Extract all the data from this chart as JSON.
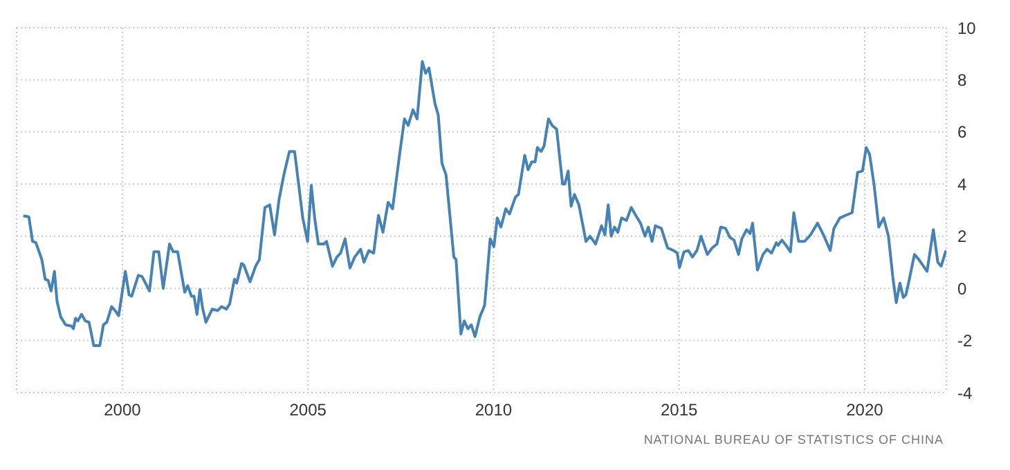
{
  "chart_data": {
    "type": "line",
    "x": [
      1997.33,
      1997.48,
      1997.58,
      1997.67,
      1997.83,
      1997.92,
      1998.0,
      1998.08,
      1998.17,
      1998.24,
      1998.34,
      1998.47,
      1998.63,
      1998.68,
      1998.74,
      1998.8,
      1998.9,
      1999.0,
      1999.1,
      1999.23,
      1999.39,
      1999.49,
      1999.58,
      1999.71,
      1999.8,
      1999.9,
      2000.08,
      2000.18,
      2000.25,
      2000.43,
      2000.53,
      2000.73,
      2000.85,
      2000.98,
      2001.1,
      2001.27,
      2001.37,
      2001.49,
      2001.68,
      2001.76,
      2001.86,
      2001.93,
      2002.01,
      2002.09,
      2002.16,
      2002.25,
      2002.42,
      2002.57,
      2002.67,
      2002.8,
      2002.89,
      2003.02,
      2003.08,
      2003.21,
      2003.27,
      2003.44,
      2003.59,
      2003.69,
      2003.84,
      2003.97,
      2004.1,
      2004.22,
      2004.35,
      2004.5,
      2004.64,
      2004.86,
      2004.99,
      2005.09,
      2005.18,
      2005.28,
      2005.43,
      2005.5,
      2005.66,
      2005.78,
      2005.88,
      2006.0,
      2006.13,
      2006.26,
      2006.42,
      2006.51,
      2006.64,
      2006.77,
      2006.9,
      2007.02,
      2007.16,
      2007.28,
      2007.47,
      2007.6,
      2007.7,
      2007.83,
      2007.94,
      2008.08,
      2008.17,
      2008.26,
      2008.42,
      2008.51,
      2008.61,
      2008.72,
      2008.93,
      2008.99,
      2009.12,
      2009.21,
      2009.31,
      2009.4,
      2009.5,
      2009.63,
      2009.76,
      2009.91,
      2010.01,
      2010.1,
      2010.2,
      2010.33,
      2010.43,
      2010.59,
      2010.67,
      2010.84,
      2010.93,
      2011.03,
      2011.12,
      2011.18,
      2011.28,
      2011.36,
      2011.48,
      2011.58,
      2011.7,
      2011.86,
      2011.92,
      2012.01,
      2012.09,
      2012.18,
      2012.3,
      2012.49,
      2012.6,
      2012.75,
      2012.91,
      2013.0,
      2013.09,
      2013.17,
      2013.26,
      2013.35,
      2013.45,
      2013.58,
      2013.71,
      2013.83,
      2013.96,
      2014.08,
      2014.17,
      2014.27,
      2014.36,
      2014.52,
      2014.69,
      2014.85,
      2014.95,
      2015.01,
      2015.13,
      2015.25,
      2015.36,
      2015.48,
      2015.59,
      2015.76,
      2015.89,
      2016.02,
      2016.12,
      2016.25,
      2016.37,
      2016.48,
      2016.6,
      2016.69,
      2016.82,
      2016.91,
      2016.98,
      2017.11,
      2017.26,
      2017.37,
      2017.49,
      2017.62,
      2017.67,
      2017.77,
      2017.88,
      2018.0,
      2018.09,
      2018.22,
      2018.38,
      2018.54,
      2018.73,
      2018.89,
      2019.07,
      2019.17,
      2019.33,
      2019.49,
      2019.66,
      2019.81,
      2019.94,
      2020.04,
      2020.13,
      2020.25,
      2020.38,
      2020.51,
      2020.64,
      2020.76,
      2020.85,
      2020.95,
      2021.04,
      2021.11,
      2021.21,
      2021.34,
      2021.46,
      2021.68,
      2021.85,
      2021.97,
      2022.06,
      2022.19
    ],
    "series": [
      {
        "color": "#4682b4",
        "values": [
          2.78,
          2.74,
          1.8,
          1.75,
          1.1,
          0.35,
          0.3,
          -0.1,
          0.65,
          -0.5,
          -1.1,
          -1.4,
          -1.45,
          -1.55,
          -1.15,
          -1.25,
          -1.0,
          -1.25,
          -1.3,
          -2.2,
          -2.2,
          -1.4,
          -1.3,
          -0.7,
          -0.85,
          -1.05,
          0.65,
          -0.25,
          -0.3,
          0.5,
          0.45,
          -0.1,
          1.4,
          1.4,
          0.0,
          1.7,
          1.4,
          1.4,
          -0.15,
          0.1,
          -0.3,
          -0.3,
          -1.0,
          -0.05,
          -0.75,
          -1.3,
          -0.8,
          -0.85,
          -0.7,
          -0.8,
          -0.6,
          0.35,
          0.2,
          0.95,
          0.9,
          0.25,
          0.85,
          1.1,
          3.1,
          3.2,
          2.05,
          3.4,
          4.35,
          5.25,
          5.25,
          2.7,
          1.8,
          3.95,
          2.7,
          1.7,
          1.7,
          1.8,
          0.85,
          1.2,
          1.35,
          1.9,
          0.78,
          1.2,
          1.5,
          1.0,
          1.45,
          1.35,
          2.8,
          2.15,
          3.3,
          3.05,
          5.15,
          6.5,
          6.25,
          6.85,
          6.5,
          8.7,
          8.25,
          8.45,
          7.1,
          6.65,
          4.8,
          4.35,
          1.2,
          1.1,
          -1.75,
          -1.25,
          -1.55,
          -1.4,
          -1.85,
          -1.1,
          -0.65,
          1.9,
          1.6,
          2.7,
          2.35,
          3.05,
          2.85,
          3.5,
          3.6,
          5.1,
          4.55,
          4.85,
          4.85,
          5.4,
          5.25,
          5.45,
          6.5,
          6.25,
          6.1,
          4.0,
          4.0,
          4.5,
          3.15,
          3.6,
          3.2,
          1.8,
          2.0,
          1.7,
          2.4,
          2.05,
          3.2,
          2.0,
          2.35,
          2.15,
          2.7,
          2.6,
          3.1,
          2.8,
          2.5,
          2.0,
          2.35,
          1.8,
          2.4,
          2.3,
          1.55,
          1.45,
          1.35,
          0.8,
          1.4,
          1.45,
          1.2,
          1.45,
          2.0,
          1.3,
          1.55,
          1.7,
          2.35,
          2.3,
          1.95,
          1.85,
          1.3,
          1.9,
          2.25,
          2.1,
          2.5,
          0.7,
          1.3,
          1.5,
          1.35,
          1.75,
          1.65,
          1.85,
          1.65,
          1.4,
          2.9,
          1.8,
          1.8,
          2.05,
          2.5,
          2.05,
          1.45,
          2.3,
          2.7,
          2.8,
          2.9,
          4.45,
          4.5,
          5.4,
          5.15,
          4.0,
          2.35,
          2.7,
          2.0,
          0.4,
          -0.55,
          0.2,
          -0.35,
          -0.25,
          0.4,
          1.3,
          1.1,
          0.65,
          2.25,
          1.0,
          0.85,
          1.45
        ]
      }
    ],
    "xlim": [
      1997.15,
      2022.2
    ],
    "xticks": [
      2000,
      2005,
      2010,
      2015,
      2020
    ],
    "ylim": [
      -4,
      10
    ],
    "yticks": [
      -4,
      -2,
      0,
      2,
      4,
      6,
      8,
      10
    ],
    "grid": true,
    "annotations": [
      "NATIONAL BUREAU OF STATISTICS OF CHINA"
    ]
  }
}
